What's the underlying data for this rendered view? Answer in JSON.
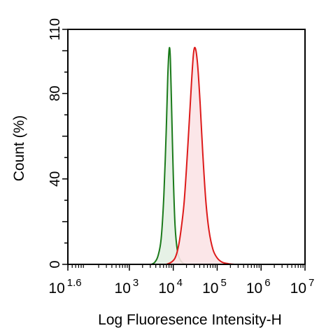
{
  "chart_data": {
    "type": "area",
    "title": "",
    "xlabel": "Log Fluoresence Intensity-H",
    "ylabel": "Count  (%)",
    "xscale": "log",
    "xlim": [
      39.81,
      10000000
    ],
    "ylim": [
      0,
      110
    ],
    "grid": false,
    "legend": "none",
    "x_ticks": [
      {
        "value": 39.81,
        "base": "10",
        "exp": "1.6"
      },
      {
        "value": 1000,
        "base": "10",
        "exp": "3"
      },
      {
        "value": 10000,
        "base": "10",
        "exp": "4"
      },
      {
        "value": 100000,
        "base": "10",
        "exp": "5"
      },
      {
        "value": 1000000,
        "base": "10",
        "exp": "6"
      },
      {
        "value": 10000000,
        "base": "10",
        "exp": "7"
      }
    ],
    "y_ticks": [
      {
        "value": 0,
        "label": "0"
      },
      {
        "value": 40,
        "label": "40"
      },
      {
        "value": 80,
        "label": "80"
      },
      {
        "value": 110,
        "label": "110"
      }
    ],
    "series": [
      {
        "color": "#1a7a1a",
        "fill": "#e3f0e3",
        "x": [
          3200,
          3800,
          4500,
          5300,
          6100,
          6900,
          7500,
          8100,
          8600,
          9200,
          10000,
          11000,
          12500,
          14500,
          17000,
          20000
        ],
        "y": [
          0,
          1,
          4,
          12,
          32,
          62,
          88,
          101,
          96,
          72,
          42,
          18,
          6,
          2,
          0.5,
          0
        ]
      },
      {
        "color": "#dd1a1a",
        "fill": "#fbe3e6",
        "x": [
          7000,
          9000,
          11000,
          13000,
          15000,
          17500,
          20000,
          23000,
          26000,
          29000,
          32000,
          36000,
          41000,
          47000,
          55000,
          65000,
          80000,
          100000,
          130000,
          180000,
          250000
        ],
        "y": [
          0,
          1,
          3,
          8,
          16,
          28,
          45,
          66,
          85,
          99,
          101,
          93,
          75,
          52,
          30,
          16,
          7,
          3,
          1,
          0.3,
          0
        ]
      }
    ]
  }
}
